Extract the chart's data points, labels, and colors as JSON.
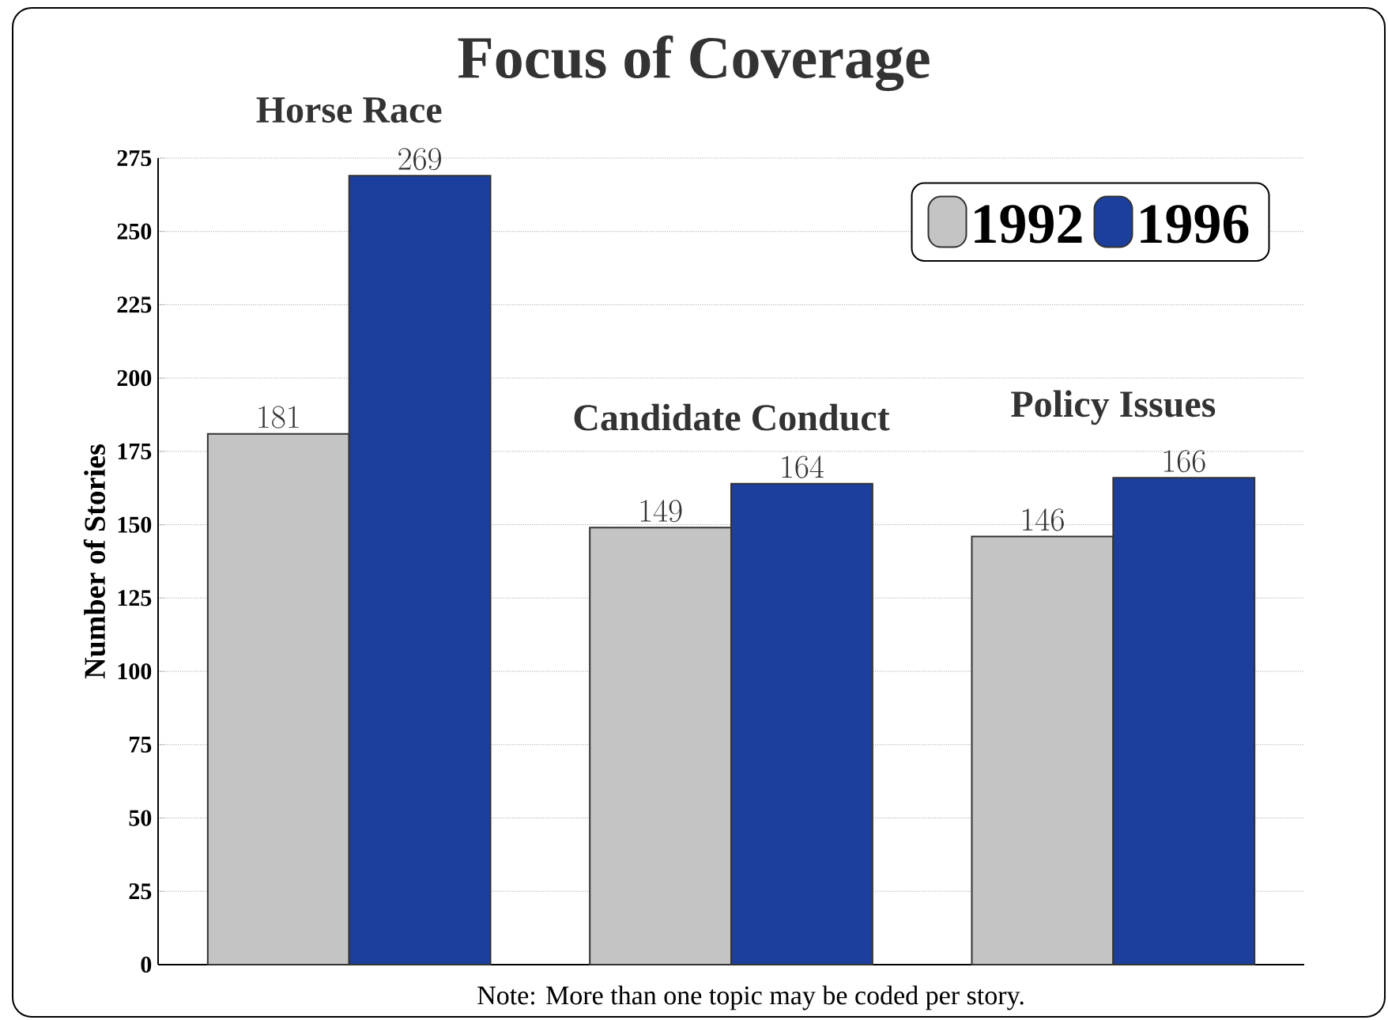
{
  "chart_data": {
    "type": "bar",
    "title": "Focus of Coverage",
    "ylabel": "Number of Stories",
    "categories": [
      "Horse Race",
      "Candidate Conduct",
      "Policy Issues"
    ],
    "series": [
      {
        "name": "1992",
        "color": "#c4c4c4",
        "values": [
          181,
          149,
          146
        ]
      },
      {
        "name": "1996",
        "color": "#1c3f9e",
        "values": [
          269,
          164,
          166
        ]
      }
    ],
    "ylim": [
      0,
      275
    ],
    "yticks": [
      0,
      25,
      50,
      75,
      100,
      125,
      150,
      175,
      200,
      225,
      250,
      275
    ],
    "grid": "y",
    "legend": "top right",
    "data_labels": true,
    "tick_labels": "y",
    "annotations": [
      "Note:  More than one topic may be coded per story."
    ]
  }
}
